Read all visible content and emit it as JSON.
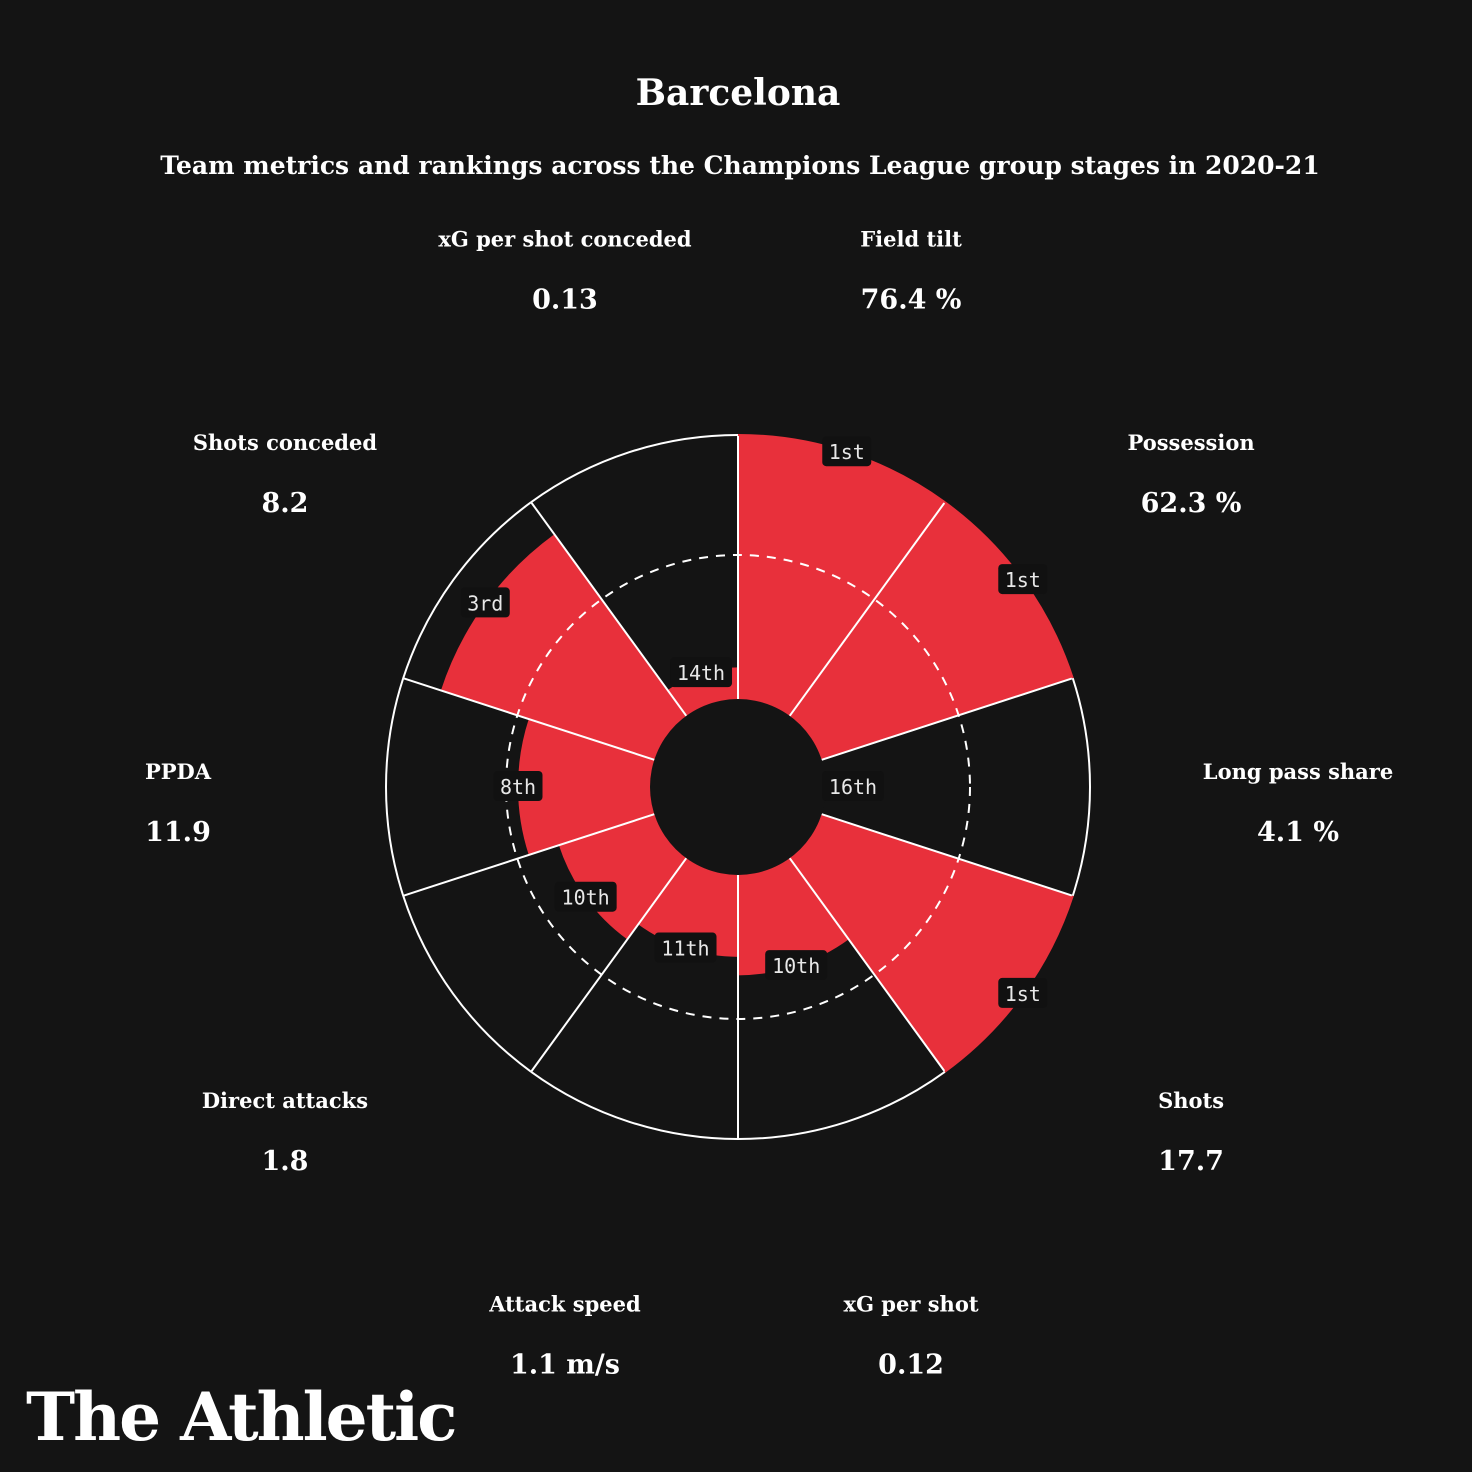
{
  "chart_data": {
    "type": "polar-bar",
    "title": "Barcelona",
    "subtitle": "Team metrics and rankings across the Champions League group stages in 2020-21",
    "rank_scale_max": 16,
    "median_ring_rank": 8,
    "accent_color": "#e8303b",
    "background_color": "#141414",
    "metrics": [
      {
        "name": "Field tilt",
        "value": "76.4 %",
        "rank": "1st",
        "score": 1.0
      },
      {
        "name": "Possession",
        "value": "62.3 %",
        "rank": "1st",
        "score": 1.0
      },
      {
        "name": "Long pass share",
        "value": "4.1 %",
        "rank": "16th",
        "score": 0.0
      },
      {
        "name": "Shots",
        "value": "17.7",
        "rank": "1st",
        "score": 1.0
      },
      {
        "name": "xG per shot",
        "value": "0.12",
        "rank": "10th",
        "score": 0.38
      },
      {
        "name": "Attack speed",
        "value": "1.1 m/s",
        "rank": "11th",
        "score": 0.31
      },
      {
        "name": "Direct attacks",
        "value": "1.8",
        "rank": "10th",
        "score": 0.38
      },
      {
        "name": "PPDA",
        "value": "11.9",
        "rank": "8th",
        "score": 0.5
      },
      {
        "name": "Shots conceded",
        "value": "8.2",
        "rank": "3rd",
        "score": 0.85
      },
      {
        "name": "xG per shot conceded",
        "value": "0.13",
        "rank": "14th",
        "score": 0.12
      }
    ]
  },
  "footer": {
    "logo_text": "The Athletic"
  }
}
